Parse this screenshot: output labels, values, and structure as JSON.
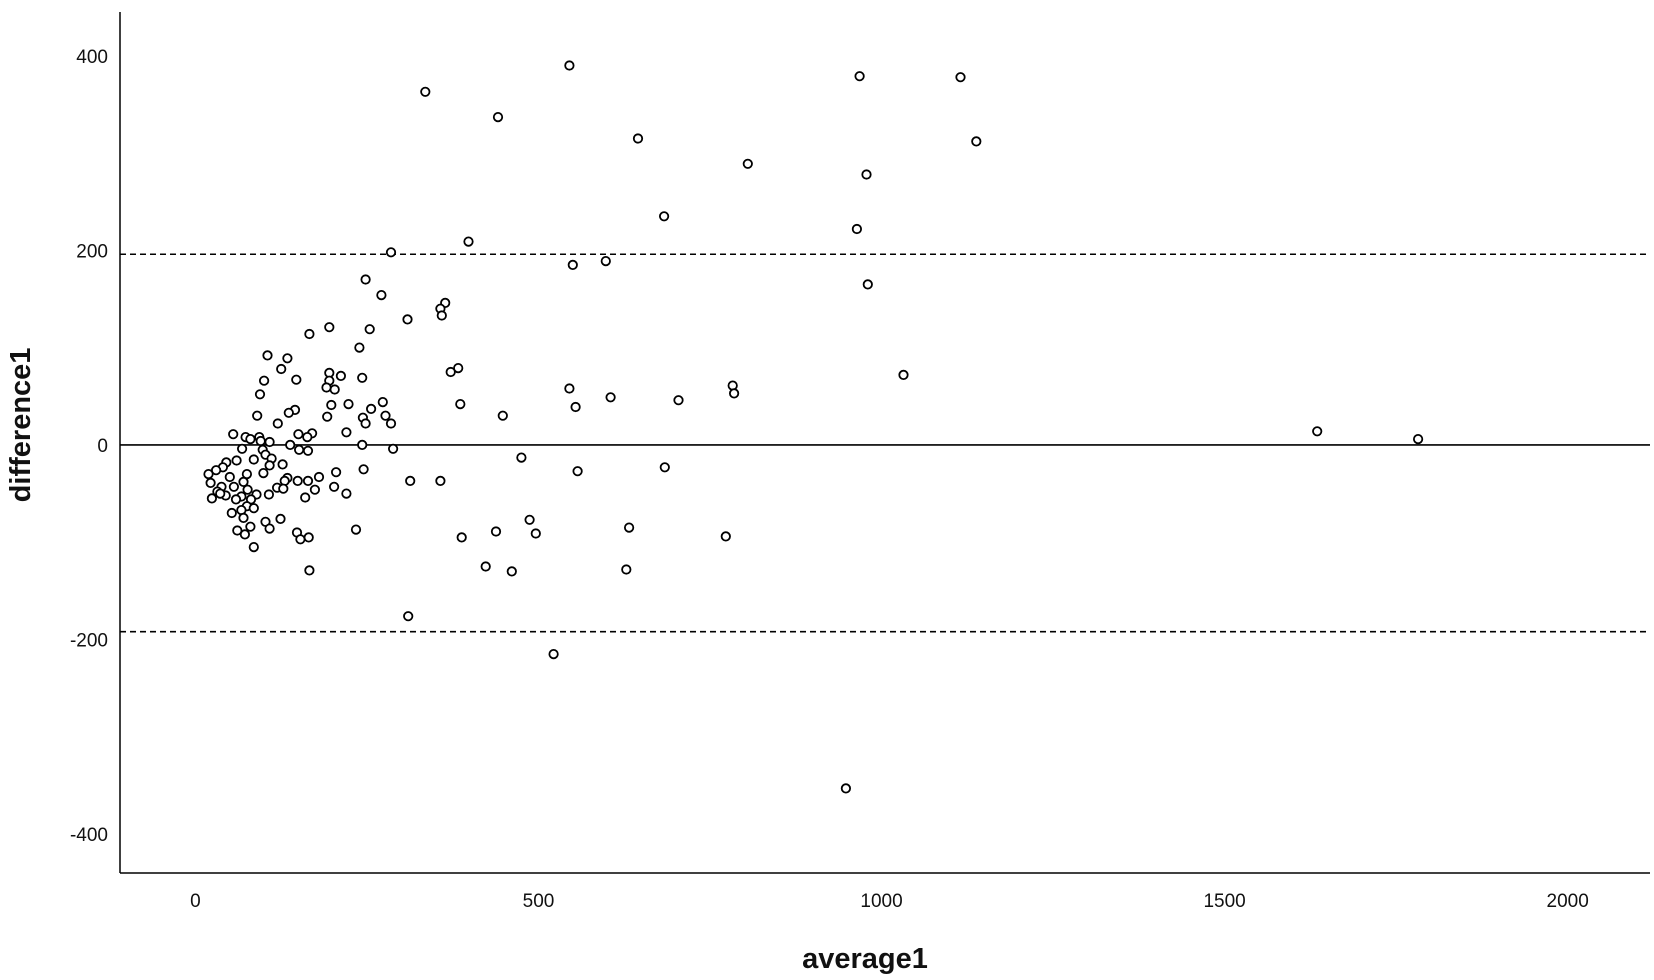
{
  "chart_data": {
    "type": "scatter",
    "title": "",
    "xlabel": "average1",
    "ylabel": "difference1",
    "xlim": [
      -110,
      2120
    ],
    "ylim": [
      -440,
      445
    ],
    "xticks": [
      0,
      500,
      1000,
      1500,
      2000
    ],
    "xtick_labels": [
      "0",
      "500",
      "1000",
      "1500",
      "2000"
    ],
    "yticks": [
      -400,
      -200,
      0,
      200,
      400
    ],
    "ytick_labels": [
      "-400",
      "-200",
      "0",
      "200",
      "400"
    ],
    "grid": false,
    "marker": "open-circle",
    "reference_lines": [
      {
        "value": 0,
        "style": "solid"
      },
      {
        "value": 196,
        "style": "dashed"
      },
      {
        "value": -192,
        "style": "dashed"
      }
    ],
    "points": [
      [
        545,
        390
      ],
      [
        968,
        379
      ],
      [
        1115,
        378
      ],
      [
        335,
        363
      ],
      [
        441,
        337
      ],
      [
        645,
        315
      ],
      [
        1138,
        312
      ],
      [
        805,
        289
      ],
      [
        978,
        278
      ],
      [
        683,
        235
      ],
      [
        964,
        222
      ],
      [
        398,
        209
      ],
      [
        285,
        198
      ],
      [
        598,
        189
      ],
      [
        550,
        185
      ],
      [
        980,
        165
      ],
      [
        248,
        170
      ],
      [
        271,
        154
      ],
      [
        364,
        146
      ],
      [
        357,
        140
      ],
      [
        359,
        133
      ],
      [
        309,
        129
      ],
      [
        195,
        121
      ],
      [
        254,
        119
      ],
      [
        166,
        114
      ],
      [
        239,
        100
      ],
      [
        105,
        92
      ],
      [
        134,
        89
      ],
      [
        383,
        79
      ],
      [
        372,
        75
      ],
      [
        195,
        74
      ],
      [
        125,
        78
      ],
      [
        212,
        71
      ],
      [
        243,
        69
      ],
      [
        147,
        67
      ],
      [
        1032,
        72
      ],
      [
        100,
        66
      ],
      [
        195,
        66
      ],
      [
        783,
        61
      ],
      [
        545,
        58
      ],
      [
        191,
        59
      ],
      [
        203,
        57
      ],
      [
        785,
        53
      ],
      [
        94,
        52
      ],
      [
        605,
        49
      ],
      [
        704,
        46
      ],
      [
        273,
        44
      ],
      [
        223,
        42
      ],
      [
        198,
        41
      ],
      [
        386,
        42
      ],
      [
        256,
        37
      ],
      [
        554,
        39
      ],
      [
        145,
        36
      ],
      [
        136,
        33
      ],
      [
        90,
        30
      ],
      [
        277,
        30
      ],
      [
        448,
        30
      ],
      [
        192,
        29
      ],
      [
        244,
        28
      ],
      [
        285,
        22
      ],
      [
        120,
        22
      ],
      [
        248,
        22
      ],
      [
        1635,
        14
      ],
      [
        220,
        13
      ],
      [
        170,
        12
      ],
      [
        150,
        11
      ],
      [
        163,
        8
      ],
      [
        55,
        11
      ],
      [
        73,
        8
      ],
      [
        93,
        8
      ],
      [
        80,
        6
      ],
      [
        95,
        4
      ],
      [
        108,
        3
      ],
      [
        1782,
        6
      ],
      [
        138,
        0
      ],
      [
        243,
        0
      ],
      [
        151,
        -5
      ],
      [
        288,
        -4
      ],
      [
        164,
        -6
      ],
      [
        98,
        -5
      ],
      [
        68,
        -4
      ],
      [
        102,
        -10
      ],
      [
        111,
        -14
      ],
      [
        127,
        -20
      ],
      [
        85,
        -15
      ],
      [
        475,
        -13
      ],
      [
        60,
        -16
      ],
      [
        45,
        -18
      ],
      [
        684,
        -23
      ],
      [
        108,
        -21
      ],
      [
        40,
        -23
      ],
      [
        557,
        -27
      ],
      [
        205,
        -28
      ],
      [
        245,
        -25
      ],
      [
        30,
        -26
      ],
      [
        19,
        -30
      ],
      [
        75,
        -30
      ],
      [
        134,
        -34
      ],
      [
        180,
        -33
      ],
      [
        99,
        -29
      ],
      [
        50,
        -33
      ],
      [
        149,
        -37
      ],
      [
        130,
        -37
      ],
      [
        357,
        -37
      ],
      [
        313,
        -37
      ],
      [
        22,
        -39
      ],
      [
        70,
        -38
      ],
      [
        164,
        -37
      ],
      [
        38,
        -43
      ],
      [
        119,
        -44
      ],
      [
        128,
        -45
      ],
      [
        56,
        -43
      ],
      [
        174,
        -46
      ],
      [
        202,
        -43
      ],
      [
        76,
        -46
      ],
      [
        32,
        -48
      ],
      [
        44,
        -52
      ],
      [
        89,
        -51
      ],
      [
        107,
        -51
      ],
      [
        67,
        -53
      ],
      [
        24,
        -55
      ],
      [
        160,
        -54
      ],
      [
        220,
        -50
      ],
      [
        81,
        -56
      ],
      [
        59,
        -56
      ],
      [
        36,
        -50
      ],
      [
        75,
        -63
      ],
      [
        85,
        -65
      ],
      [
        67,
        -67
      ],
      [
        53,
        -70
      ],
      [
        70,
        -75
      ],
      [
        124,
        -76
      ],
      [
        487,
        -77
      ],
      [
        102,
        -79
      ],
      [
        80,
        -84
      ],
      [
        61,
        -88
      ],
      [
        632,
        -85
      ],
      [
        108,
        -86
      ],
      [
        234,
        -87
      ],
      [
        438,
        -89
      ],
      [
        496,
        -91
      ],
      [
        148,
        -90
      ],
      [
        388,
        -95
      ],
      [
        72,
        -92
      ],
      [
        153,
        -97
      ],
      [
        773,
        -94
      ],
      [
        165,
        -95
      ],
      [
        85,
        -105
      ],
      [
        423,
        -125
      ],
      [
        628,
        -128
      ],
      [
        461,
        -130
      ],
      [
        166,
        -129
      ],
      [
        310,
        -176
      ],
      [
        522,
        -215
      ],
      [
        948,
        -353
      ]
    ]
  }
}
